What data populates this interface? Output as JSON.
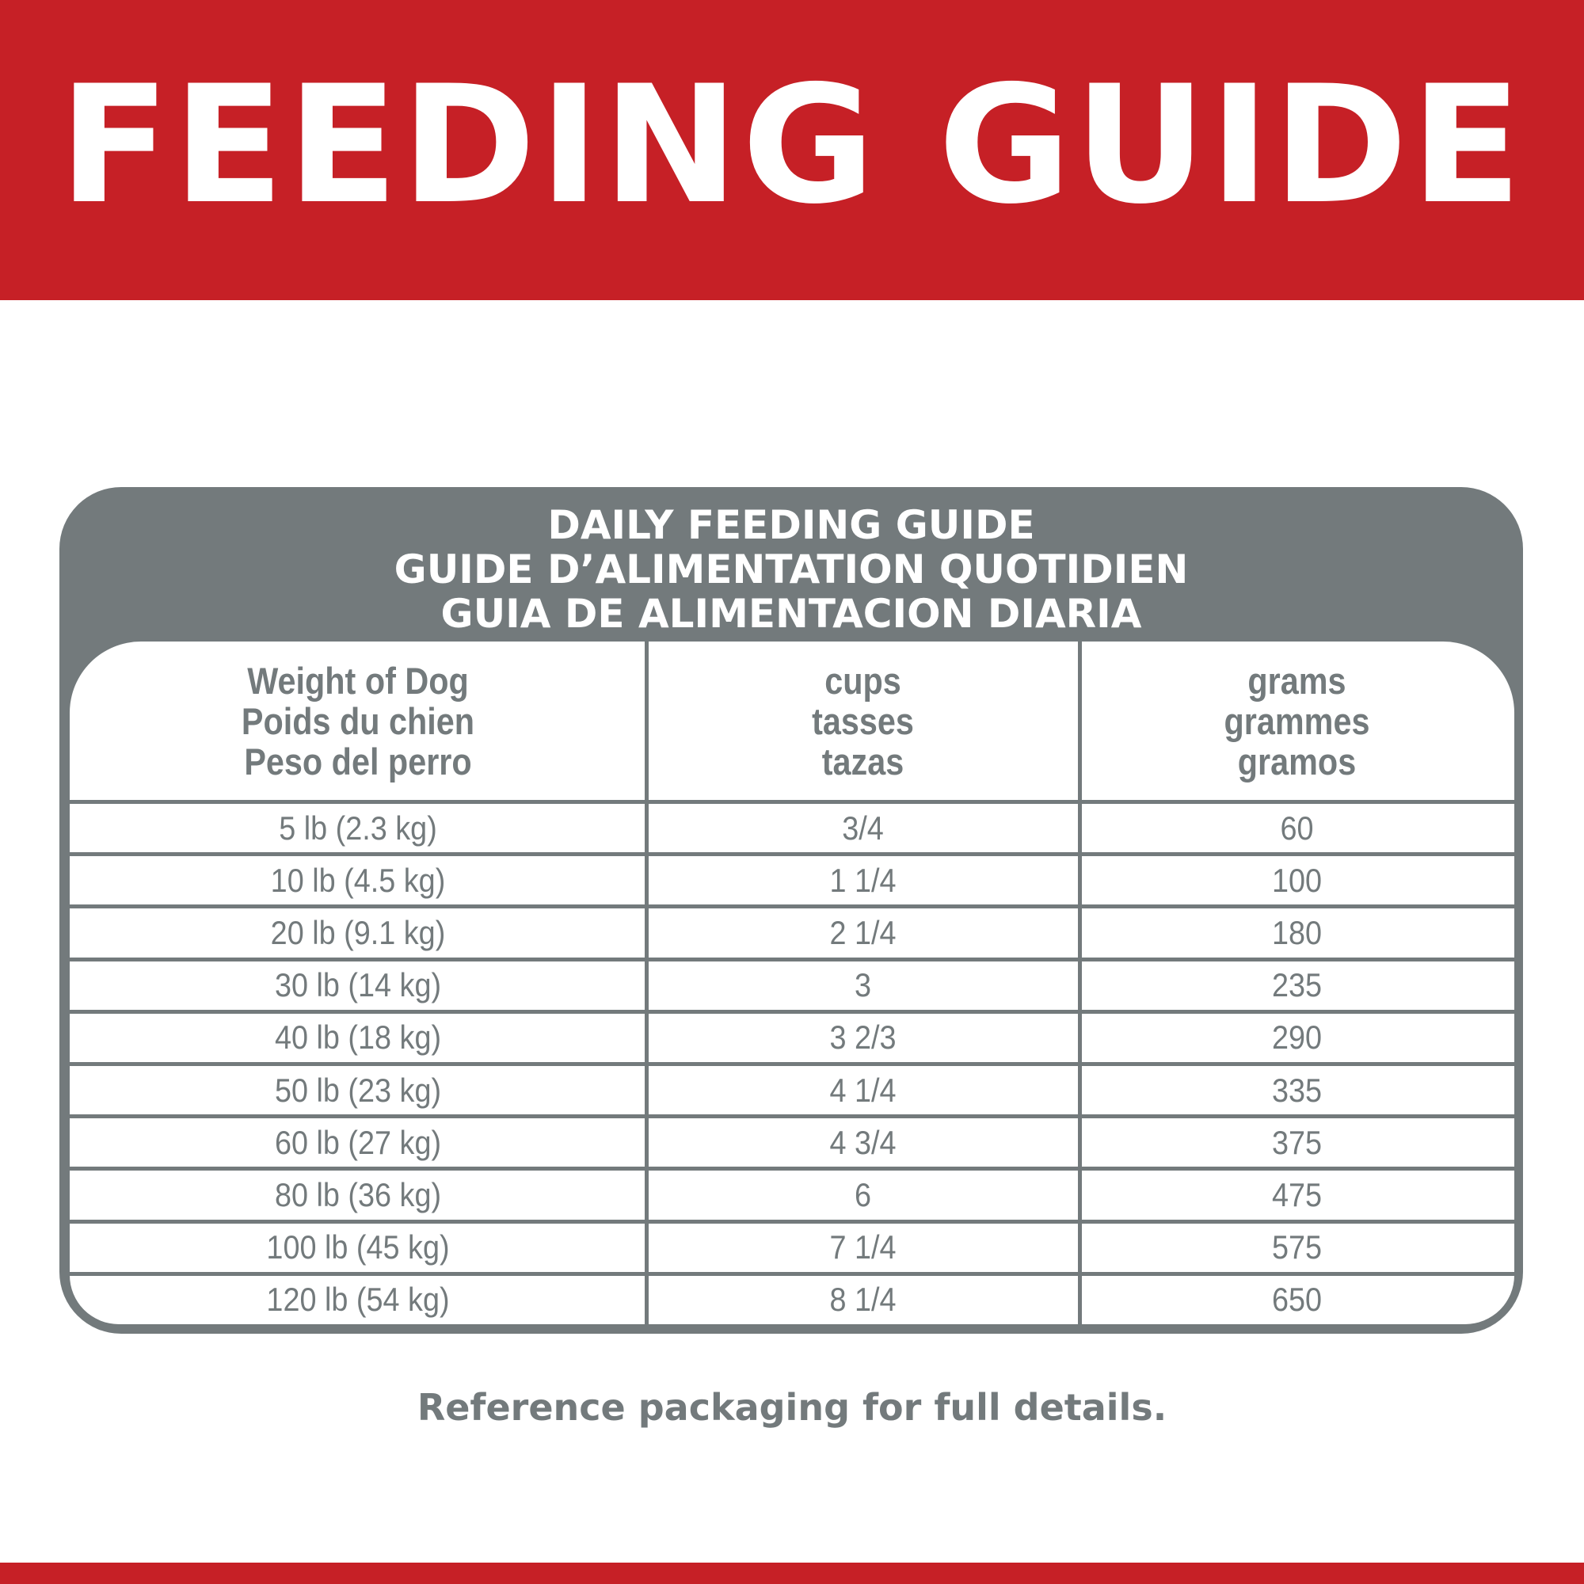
{
  "colors": {
    "red": "#c62026",
    "gray": "#737a7c"
  },
  "header": {
    "title": "FEEDING GUIDE"
  },
  "table": {
    "titles": [
      "DAILY FEEDING GUIDE",
      "GUIDE D’ALIMENTATION QUOTIDIEN",
      "GUIA DE ALIMENTACION DIARIA"
    ],
    "columns": [
      [
        "Weight of Dog",
        "Poids du chien",
        "Peso del perro"
      ],
      [
        "cups",
        "tasses",
        "tazas"
      ],
      [
        "grams",
        "grammes",
        "gramos"
      ]
    ],
    "rows": [
      [
        "5 lb (2.3 kg)",
        "3/4",
        "60"
      ],
      [
        "10 lb (4.5 kg)",
        "1 1/4",
        "100"
      ],
      [
        "20 lb (9.1 kg)",
        "2 1/4",
        "180"
      ],
      [
        "30 lb (14 kg)",
        "3",
        "235"
      ],
      [
        "40 lb (18 kg)",
        "3 2/3",
        "290"
      ],
      [
        "50 lb (23 kg)",
        "4 1/4",
        "335"
      ],
      [
        "60 lb (27 kg)",
        "4 3/4",
        "375"
      ],
      [
        "80 lb (36 kg)",
        "6",
        "475"
      ],
      [
        "100 lb (45 kg)",
        "7 1/4",
        "575"
      ],
      [
        "120 lb (54 kg)",
        "8 1/4",
        "650"
      ]
    ]
  },
  "footer": {
    "note": "Reference packaging for full details."
  }
}
